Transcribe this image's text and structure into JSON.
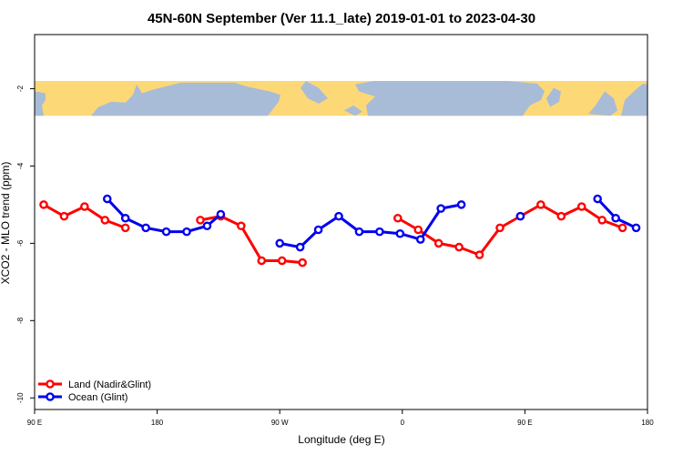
{
  "chart_data": {
    "type": "line",
    "title": "45N-60N September (Ver 11.1_late)   2019-01-01 to 2023-04-30",
    "xlabel": "Longitude (deg E)",
    "ylabel": "XCO2 - MLO trend (ppm)",
    "xlim": [
      -90,
      180
    ],
    "ylim": [
      -10.3,
      -0.6
    ],
    "x_ticks": [
      {
        "value": -90,
        "label": "90 E"
      },
      {
        "value": -36,
        "label": "180"
      },
      {
        "value": 18,
        "label": "90 W"
      },
      {
        "value": 72,
        "label": "0"
      },
      {
        "value": 126,
        "label": "90 E"
      },
      {
        "value": 180,
        "label": "180"
      }
    ],
    "y_ticks": [
      {
        "value": -2,
        "label": "-2"
      },
      {
        "value": -4,
        "label": "-4"
      },
      {
        "value": -6,
        "label": "-6"
      },
      {
        "value": -8,
        "label": "-8"
      },
      {
        "value": -10,
        "label": "-10"
      }
    ],
    "map_band": {
      "y_top": -1.8,
      "y_bottom": -2.7,
      "ocean_color": "#a8bcd8",
      "land_color": "#fdd877"
    },
    "legend": {
      "position": "bottom-left"
    },
    "series": [
      {
        "name": "Land (Nadir&Glint)",
        "color": "#ff0000",
        "segments": [
          [
            [
              -86,
              -5.0
            ],
            [
              -77,
              -5.3
            ],
            [
              -68,
              -5.05
            ],
            [
              -59,
              -5.4
            ],
            [
              -50,
              -5.6
            ]
          ],
          [
            [
              -17,
              -5.4
            ],
            [
              -8,
              -5.3
            ],
            [
              1,
              -5.55
            ],
            [
              10,
              -6.45
            ],
            [
              19,
              -6.45
            ],
            [
              28,
              -6.5
            ]
          ],
          [
            [
              70,
              -5.35
            ],
            [
              79,
              -5.65
            ],
            [
              88,
              -6.0
            ],
            [
              97,
              -6.1
            ],
            [
              106,
              -6.3
            ],
            [
              115,
              -5.6
            ],
            [
              124,
              -5.3
            ],
            [
              133,
              -5.0
            ],
            [
              142,
              -5.3
            ],
            [
              151,
              -5.05
            ],
            [
              160,
              -5.4
            ],
            [
              169,
              -5.6
            ]
          ]
        ]
      },
      {
        "name": "Ocean (Glint)",
        "color": "#0000ee",
        "segments": [
          [
            [
              -58,
              -4.85
            ],
            [
              -50,
              -5.35
            ],
            [
              -41,
              -5.6
            ],
            [
              -32,
              -5.7
            ],
            [
              -23,
              -5.7
            ],
            [
              -14,
              -5.55
            ],
            [
              -8,
              -5.25
            ]
          ],
          [
            [
              18,
              -6.0
            ],
            [
              27,
              -6.1
            ],
            [
              35,
              -5.65
            ],
            [
              44,
              -5.3
            ],
            [
              53,
              -5.7
            ],
            [
              62,
              -5.7
            ],
            [
              71,
              -5.75
            ],
            [
              80,
              -5.9
            ],
            [
              89,
              -5.1
            ],
            [
              98,
              -5.0
            ]
          ],
          [
            [
              124,
              -5.3
            ]
          ],
          [
            [
              158,
              -4.85
            ],
            [
              166,
              -5.35
            ],
            [
              175,
              -5.6
            ]
          ]
        ]
      }
    ]
  }
}
